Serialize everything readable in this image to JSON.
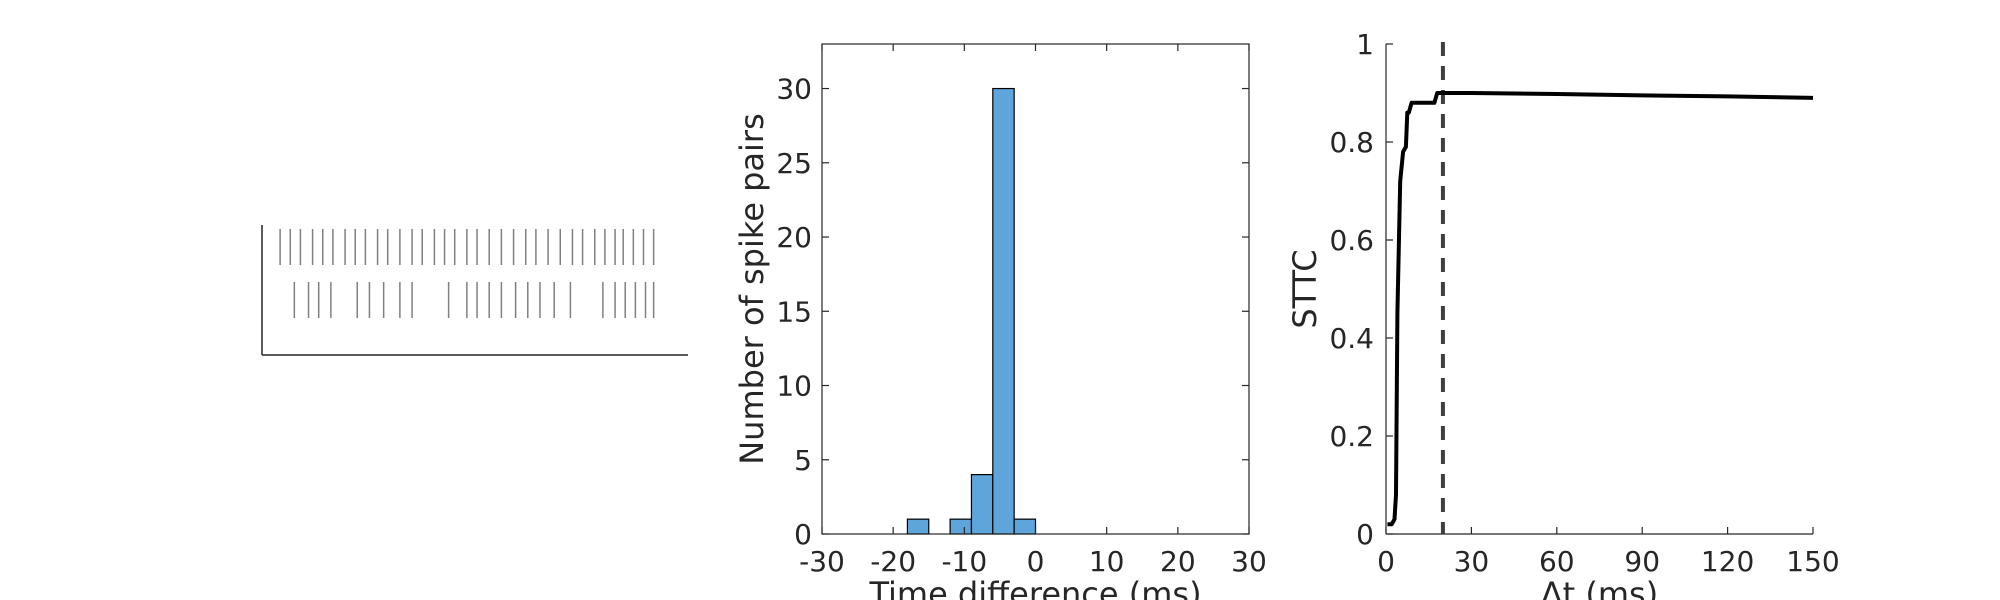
{
  "chart_data": [
    {
      "type": "raster",
      "title": "",
      "rows": [
        {
          "spikes": [
            0.02,
            0.045,
            0.07,
            0.1,
            0.125,
            0.15,
            0.18,
            0.205,
            0.23,
            0.26,
            0.285,
            0.315,
            0.345,
            0.37,
            0.4,
            0.425,
            0.45,
            0.48,
            0.505,
            0.535,
            0.565,
            0.595,
            0.625,
            0.65,
            0.68,
            0.71,
            0.74,
            0.765,
            0.795,
            0.82,
            0.845,
            0.865,
            0.89,
            0.915,
            0.94
          ]
        },
        {
          "spikes": [
            0.055,
            0.09,
            0.115,
            0.145,
            0.21,
            0.24,
            0.275,
            0.315,
            0.345,
            0.435,
            0.48,
            0.505,
            0.535,
            0.565,
            0.6,
            0.63,
            0.66,
            0.695,
            0.735,
            0.815,
            0.845,
            0.87,
            0.895,
            0.92,
            0.94
          ]
        }
      ]
    },
    {
      "type": "bar",
      "title": "",
      "xlabel": "Time difference (ms)",
      "ylabel": "Number of spike pairs",
      "xlim": [
        -30,
        30
      ],
      "ylim": [
        0,
        33
      ],
      "xticks": [
        -30,
        -20,
        -10,
        0,
        10,
        20,
        30
      ],
      "yticks": [
        0,
        5,
        10,
        15,
        20,
        25,
        30
      ],
      "bin_width": 3,
      "bin_starts": [
        -18,
        -12,
        -9,
        -6,
        -3
      ],
      "values": [
        1,
        1,
        4,
        30,
        1
      ],
      "color": "#5DA5DA",
      "edgecolor": "#000000"
    },
    {
      "type": "line",
      "title": "",
      "xlabel": "Δt (ms)",
      "ylabel": "STTC",
      "xlim": [
        0,
        150
      ],
      "ylim": [
        0,
        1
      ],
      "xticks": [
        0,
        30,
        60,
        90,
        120,
        150
      ],
      "yticks": [
        0,
        0.2,
        0.4,
        0.6,
        0.8,
        1
      ],
      "ytick_labels": [
        "0",
        "0.2",
        "0.4",
        "0.6",
        "0.8",
        "1"
      ],
      "series": [
        {
          "color": "#000000",
          "x": [
            0.5,
            2,
            3,
            3.5,
            4,
            5,
            6,
            7,
            7.5,
            8,
            8.5,
            9,
            10,
            12,
            15,
            17,
            18,
            20,
            30,
            60,
            90,
            120,
            150
          ],
          "y": [
            0.02,
            0.02,
            0.03,
            0.08,
            0.45,
            0.72,
            0.78,
            0.79,
            0.86,
            0.86,
            0.87,
            0.88,
            0.88,
            0.88,
            0.88,
            0.88,
            0.9,
            0.9,
            0.9,
            0.898,
            0.895,
            0.893,
            0.89
          ]
        }
      ],
      "reference_line": {
        "x": 20,
        "style": "dashed",
        "color": "#404040"
      }
    }
  ]
}
